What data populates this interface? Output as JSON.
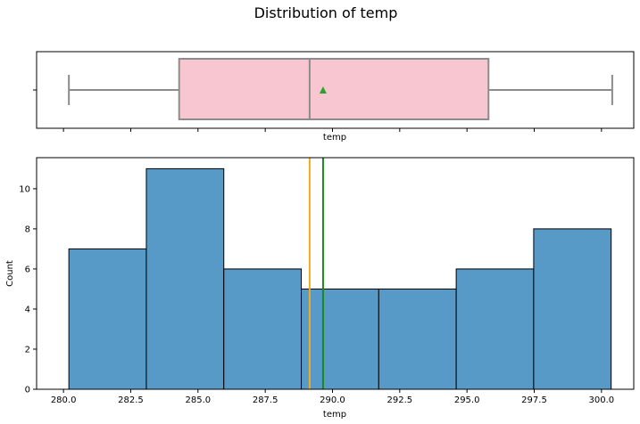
{
  "chart_data": [
    {
      "type": "boxplot",
      "title": "Distribution of temp",
      "xlabel": "temp",
      "ylabel": "",
      "xlim": [
        279.0,
        301.2
      ],
      "stats": {
        "whisker_low": 280.2,
        "q1": 284.3,
        "median": 289.15,
        "q3": 295.8,
        "whisker_high": 300.4,
        "mean": 289.65
      },
      "box_color": "#f7c6d0",
      "mean_marker_color": "#2ca02c",
      "x_ticks": [
        280.0,
        282.5,
        285.0,
        287.5,
        290.0,
        292.5,
        295.0,
        297.5,
        300.0
      ]
    },
    {
      "type": "histogram",
      "title": "",
      "xlabel": "temp",
      "ylabel": "Count",
      "xlim": [
        279.0,
        301.2
      ],
      "ylim": [
        0,
        11.55
      ],
      "bins": [
        {
          "x0": 280.2,
          "x1": 283.08,
          "count": 7
        },
        {
          "x0": 283.08,
          "x1": 285.96,
          "count": 11
        },
        {
          "x0": 285.96,
          "x1": 288.84,
          "count": 6
        },
        {
          "x0": 288.84,
          "x1": 291.72,
          "count": 5
        },
        {
          "x0": 291.72,
          "x1": 294.6,
          "count": 5
        },
        {
          "x0": 294.6,
          "x1": 297.48,
          "count": 6
        },
        {
          "x0": 297.48,
          "x1": 300.36,
          "count": 8
        }
      ],
      "bar_color": "#5799c7",
      "median_line": {
        "value": 289.15,
        "color": "#f2a922"
      },
      "mean_line": {
        "value": 289.65,
        "color": "#1a8a1a"
      },
      "x_ticks": [
        280.0,
        282.5,
        285.0,
        287.5,
        290.0,
        292.5,
        295.0,
        297.5,
        300.0
      ],
      "x_tick_labels": [
        "280.0",
        "282.5",
        "285.0",
        "287.5",
        "290.0",
        "292.5",
        "295.0",
        "297.5",
        "300.0"
      ],
      "y_ticks": [
        0,
        2,
        4,
        6,
        8,
        10
      ],
      "y_tick_labels": [
        "0",
        "2",
        "4",
        "6",
        "8",
        "10"
      ]
    }
  ]
}
